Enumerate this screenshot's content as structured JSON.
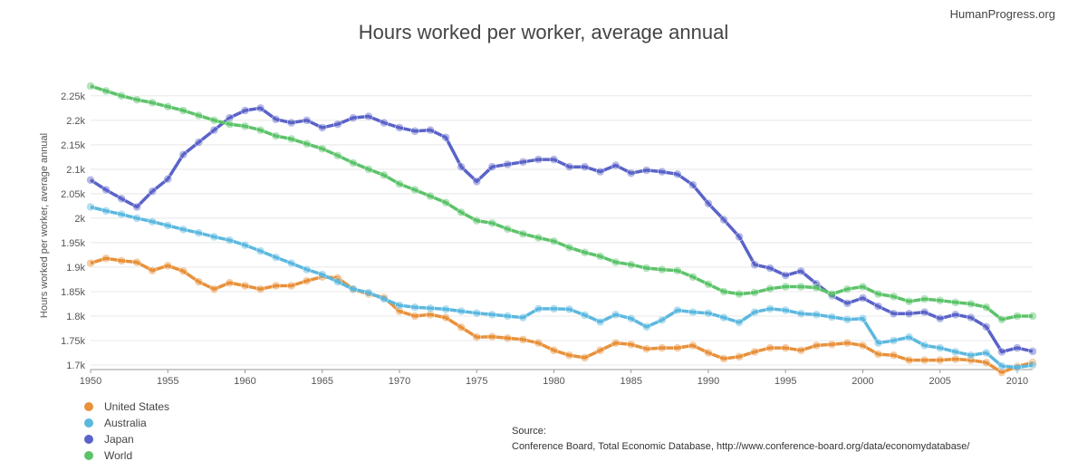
{
  "brand": "HumanProgress.org",
  "source_label": "Source:",
  "source_text": "Conference Board, Total Economic Database, http://www.conference-board.org/data/economydatabase/",
  "chart_data": {
    "type": "line",
    "title": "Hours worked per worker, average annual",
    "xlabel": "",
    "ylabel": "Hours worked per worker, average annual",
    "xlim": [
      1950,
      2011
    ],
    "ylim": [
      1700,
      2270
    ],
    "x_ticks": [
      1950,
      1955,
      1960,
      1965,
      1970,
      1975,
      1980,
      1985,
      1990,
      1995,
      2000,
      2005,
      2010
    ],
    "y_ticks": [
      1700,
      1750,
      1800,
      1850,
      1900,
      1950,
      2000,
      2050,
      2100,
      2150,
      2200,
      2250
    ],
    "y_tick_labels": [
      "1.7k",
      "1.75k",
      "1.8k",
      "1.85k",
      "1.9k",
      "1.95k",
      "2k",
      "2.05k",
      "2.1k",
      "2.15k",
      "2.2k",
      "2.25k"
    ],
    "legend_position": "bottom-left",
    "grid": true,
    "x": [
      1950,
      1951,
      1952,
      1953,
      1954,
      1955,
      1956,
      1957,
      1958,
      1959,
      1960,
      1961,
      1962,
      1963,
      1964,
      1965,
      1966,
      1967,
      1968,
      1969,
      1970,
      1971,
      1972,
      1973,
      1974,
      1975,
      1976,
      1977,
      1978,
      1979,
      1980,
      1981,
      1982,
      1983,
      1984,
      1985,
      1986,
      1987,
      1988,
      1989,
      1990,
      1991,
      1992,
      1993,
      1994,
      1995,
      1996,
      1997,
      1998,
      1999,
      2000,
      2001,
      2002,
      2003,
      2004,
      2005,
      2006,
      2007,
      2008,
      2009,
      2010,
      2011
    ],
    "series": [
      {
        "name": "United States",
        "color": "#e8913a",
        "values": [
          1908,
          1918,
          1913,
          1910,
          1893,
          1903,
          1892,
          1870,
          1855,
          1868,
          1862,
          1855,
          1862,
          1862,
          1872,
          1880,
          1878,
          1855,
          1845,
          1838,
          1810,
          1800,
          1803,
          1797,
          1777,
          1757,
          1758,
          1755,
          1752,
          1745,
          1730,
          1720,
          1715,
          1730,
          1745,
          1742,
          1733,
          1735,
          1735,
          1740,
          1725,
          1713,
          1717,
          1727,
          1735,
          1735,
          1730,
          1740,
          1742,
          1745,
          1740,
          1722,
          1720,
          1710,
          1710,
          1710,
          1712,
          1710,
          1705,
          1685,
          1697,
          1705
        ]
      },
      {
        "name": "Australia",
        "color": "#5bb8df",
        "values": [
          2023,
          2015,
          2008,
          2000,
          1993,
          1985,
          1977,
          1970,
          1962,
          1955,
          1945,
          1933,
          1920,
          1908,
          1895,
          1885,
          1870,
          1855,
          1848,
          1835,
          1822,
          1818,
          1816,
          1814,
          1810,
          1806,
          1803,
          1800,
          1797,
          1815,
          1815,
          1814,
          1802,
          1788,
          1803,
          1795,
          1778,
          1792,
          1812,
          1808,
          1806,
          1797,
          1787,
          1808,
          1815,
          1812,
          1805,
          1803,
          1798,
          1793,
          1795,
          1745,
          1750,
          1757,
          1740,
          1735,
          1727,
          1720,
          1725,
          1698,
          1695,
          1700
        ]
      },
      {
        "name": "Japan",
        "color": "#5a63c8",
        "values": [
          2078,
          2058,
          2040,
          2023,
          2055,
          2080,
          2130,
          2155,
          2180,
          2205,
          2220,
          2225,
          2202,
          2195,
          2200,
          2185,
          2192,
          2205,
          2208,
          2195,
          2185,
          2178,
          2180,
          2165,
          2105,
          2075,
          2105,
          2110,
          2115,
          2120,
          2120,
          2105,
          2105,
          2095,
          2108,
          2092,
          2098,
          2095,
          2090,
          2068,
          2030,
          1997,
          1962,
          1905,
          1898,
          1883,
          1892,
          1866,
          1842,
          1826,
          1837,
          1820,
          1805,
          1805,
          1808,
          1795,
          1803,
          1797,
          1778,
          1727,
          1735,
          1728
        ]
      },
      {
        "name": "World",
        "color": "#5cc36a",
        "values": [
          2270,
          2260,
          2250,
          2242,
          2236,
          2228,
          2220,
          2210,
          2200,
          2192,
          2188,
          2180,
          2168,
          2162,
          2152,
          2142,
          2128,
          2113,
          2100,
          2088,
          2070,
          2058,
          2045,
          2032,
          2012,
          1995,
          1990,
          1978,
          1968,
          1960,
          1953,
          1940,
          1930,
          1922,
          1910,
          1905,
          1898,
          1895,
          1893,
          1880,
          1865,
          1850,
          1845,
          1848,
          1856,
          1860,
          1860,
          1858,
          1845,
          1855,
          1860,
          1845,
          1840,
          1830,
          1835,
          1832,
          1828,
          1825,
          1818,
          1793,
          1800,
          1800
        ]
      }
    ]
  }
}
